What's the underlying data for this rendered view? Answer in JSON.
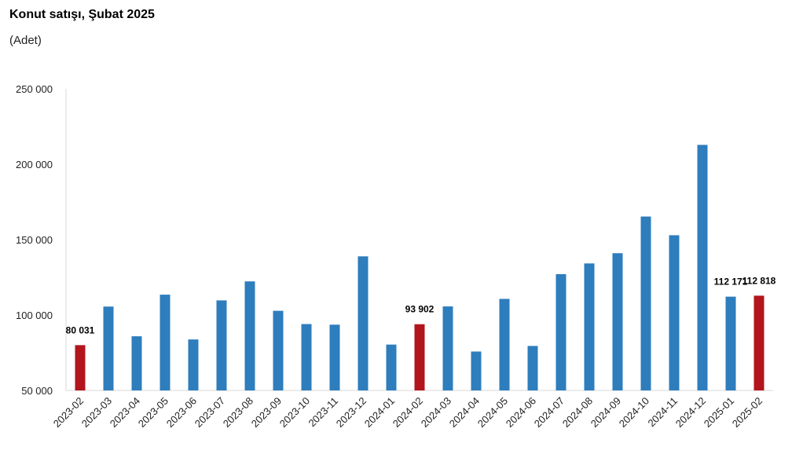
{
  "chart_data": {
    "type": "bar",
    "title": "Konut satışı, Şubat 2025",
    "subtitle": "(Adet)",
    "xlabel": "",
    "ylabel": "",
    "ylim": [
      50000,
      250000
    ],
    "yticks": [
      50000,
      100000,
      150000,
      200000,
      250000
    ],
    "ytick_labels": [
      "50 000",
      "100 000",
      "150 000",
      "200 000",
      "250 000"
    ],
    "grid": false,
    "colors": {
      "default": "#2e7dbd",
      "highlight": "#b2151c"
    },
    "categories": [
      "2023-02",
      "2023-03",
      "2023-04",
      "2023-05",
      "2023-06",
      "2023-07",
      "2023-08",
      "2023-09",
      "2023-10",
      "2023-11",
      "2023-12",
      "2024-01",
      "2024-02",
      "2024-03",
      "2024-04",
      "2024-05",
      "2024-06",
      "2024-07",
      "2024-08",
      "2024-09",
      "2024-10",
      "2024-11",
      "2024-12",
      "2025-01",
      "2025-02"
    ],
    "values": [
      80031,
      105600,
      85900,
      113500,
      83800,
      109700,
      122300,
      102800,
      94000,
      93600,
      138900,
      80400,
      93902,
      105700,
      75800,
      110700,
      79500,
      127100,
      134200,
      141000,
      165300,
      152900,
      212800,
      112171,
      112818
    ],
    "highlight": [
      true,
      false,
      false,
      false,
      false,
      false,
      false,
      false,
      false,
      false,
      false,
      false,
      true,
      false,
      false,
      false,
      false,
      false,
      false,
      false,
      false,
      false,
      false,
      false,
      true
    ],
    "data_labels": [
      {
        "index": 0,
        "text": "80 031"
      },
      {
        "index": 12,
        "text": "93 902"
      },
      {
        "index": 23,
        "text": "112 171"
      },
      {
        "index": 24,
        "text": "112 818"
      }
    ]
  }
}
